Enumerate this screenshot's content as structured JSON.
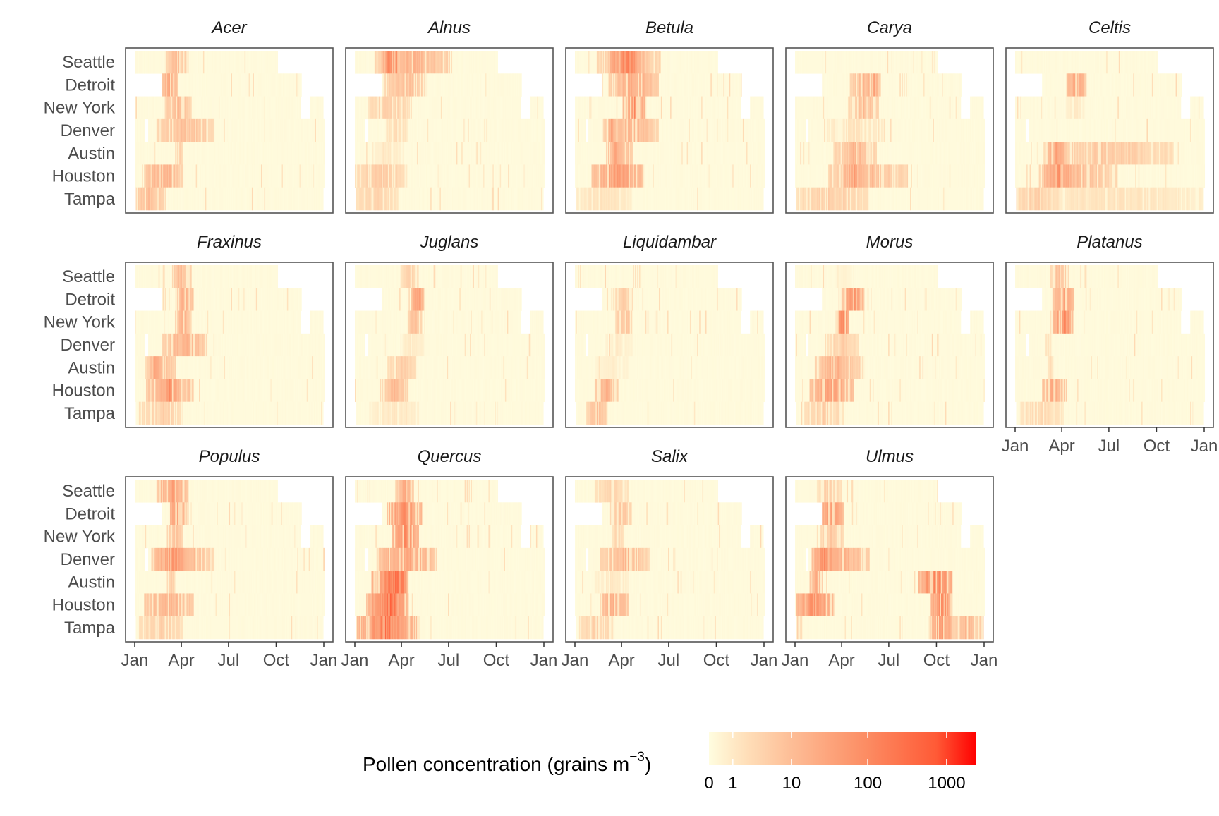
{
  "chart_data": {
    "type": "heatmap",
    "facet_by": "genus",
    "x_axis": {
      "label": "",
      "unit": "day of year",
      "range": [
        0,
        365
      ],
      "ticks": [
        {
          "label": "Jan",
          "day": 0
        },
        {
          "label": "Apr",
          "day": 90
        },
        {
          "label": "Jul",
          "day": 181
        },
        {
          "label": "Oct",
          "day": 273
        },
        {
          "label": "Jan",
          "day": 365
        }
      ]
    },
    "y_categories": [
      "Seattle",
      "Detroit",
      "New York",
      "Denver",
      "Austin",
      "Houston",
      "Tampa"
    ],
    "legend": {
      "title": "Pollen concentration (grains m",
      "title_sup": "−3",
      "title_close": ")",
      "placement": "bottom",
      "scale": "log10(x+1)",
      "max_log": 3.375,
      "breaks": [
        {
          "label": "0",
          "value": 0
        },
        {
          "label": "1",
          "value": 1
        },
        {
          "label": "10",
          "value": 10
        },
        {
          "label": "100",
          "value": 100
        },
        {
          "label": "1000",
          "value": 1000
        }
      ],
      "colors": [
        "#FFFDE0",
        "#FFE3BD",
        "#FDBB94",
        "#FC8A61",
        "#FF5A36",
        "#FF0000"
      ]
    },
    "coverage_days": {
      "Seattle": [
        [
          0,
          275
        ]
      ],
      "Detroit": [
        [
          52,
          322
        ]
      ],
      "New York": [
        [
          0,
          320
        ],
        [
          338,
          363
        ]
      ],
      "Denver": [
        [
          0,
          19
        ],
        [
          25,
          365
        ]
      ],
      "Austin": [
        [
          0,
          365
        ]
      ],
      "Houston": [
        [
          0,
          365
        ]
      ],
      "Tampa": [
        [
          2,
          364
        ]
      ]
    },
    "note": "seasons: [start_day, end_day, peak log10(concentration+1)]",
    "panels": [
      {
        "genus": "Acer",
        "seasons": {
          "Seattle": [
            [
              60,
              100,
              1.2
            ]
          ],
          "Detroit": [
            [
              52,
              80,
              1.6
            ]
          ],
          "New York": [
            [
              60,
              105,
              1.3
            ]
          ],
          "Denver": [
            [
              45,
              150,
              1.2
            ]
          ],
          "Austin": [
            [
              80,
              90,
              1.0
            ]
          ],
          "Houston": [
            [
              20,
              90,
              1.5
            ]
          ],
          "Tampa": [
            [
              0,
              55,
              1.2
            ]
          ]
        }
      },
      {
        "genus": "Alnus",
        "seasons": {
          "Seattle": [
            [
              40,
              179,
              1.4
            ],
            [
              57,
              85,
              2.6
            ]
          ],
          "Detroit": [
            [
              57,
              135,
              1.2
            ]
          ],
          "New York": [
            [
              28,
              106,
              0.9
            ]
          ],
          "Denver": [
            [
              60,
              100,
              0.6
            ]
          ],
          "Austin": [
            [
              40,
              90,
              0.4
            ]
          ],
          "Houston": [
            [
              0,
              98,
              1.0
            ]
          ],
          "Tampa": [
            [
              0,
              80,
              0.8
            ]
          ]
        }
      },
      {
        "genus": "Betula",
        "seasons": {
          "Seattle": [
            [
              45,
              162,
              1.2
            ],
            [
              70,
              129,
              2.4
            ]
          ],
          "Detroit": [
            [
              68,
              157,
              1.6
            ]
          ],
          "New York": [
            [
              95,
              134,
              2.3
            ]
          ],
          "Denver": [
            [
              57,
              157,
              1.4
            ],
            [
              68,
              72,
              2.0
            ]
          ],
          "Austin": [
            [
              62,
              107,
              1.6
            ],
            [
              73,
              82,
              2.2
            ]
          ],
          "Houston": [
            [
              35,
              129,
              1.9
            ]
          ],
          "Tampa": [
            [
              0,
              107,
              0.5
            ]
          ]
        }
      },
      {
        "genus": "Carya",
        "seasons": {
          "Seattle": [],
          "Detroit": [
            [
              107,
              161,
              1.3
            ],
            [
              139,
              161,
              1.8
            ]
          ],
          "New York": [
            [
              107,
              158,
              1.2
            ]
          ],
          "Denver": [
            [
              60,
              170,
              0.5
            ]
          ],
          "Austin": [
            [
              76,
              153,
              1.2
            ],
            [
              104,
              131,
              1.7
            ]
          ],
          "Houston": [
            [
              66,
              213,
              1.3
            ],
            [
              95,
              131,
              2.0
            ]
          ],
          "Tampa": [
            [
              5,
              137,
              0.9
            ]
          ]
        }
      },
      {
        "genus": "Celtis",
        "seasons": {
          "Seattle": [],
          "Detroit": [
            [
              100,
              133,
              1.8
            ]
          ],
          "New York": [
            [
              100,
              130,
              0.4
            ]
          ],
          "Denver": [],
          "Austin": [
            [
              57,
              302,
              1.0
            ],
            [
              62,
              95,
              1.8
            ]
          ],
          "Houston": [
            [
              46,
              193,
              1.2
            ],
            [
              55,
              110,
              2.1
            ]
          ],
          "Tampa": [
            [
              2,
              364,
              0.5
            ],
            [
              2,
              80,
              0.9
            ]
          ]
        }
      },
      {
        "genus": "Fraxinus",
        "seasons": {
          "Seattle": [
            [
              75,
              105,
              1.3
            ]
          ],
          "Detroit": [
            [
              80,
              110,
              1.6
            ]
          ],
          "New York": [
            [
              80,
              105,
              1.5
            ]
          ],
          "Denver": [
            [
              55,
              135,
              1.5
            ]
          ],
          "Austin": [
            [
              25,
              75,
              1.4
            ],
            [
              30,
              50,
              1.8
            ]
          ],
          "Houston": [
            [
              25,
              110,
              1.6
            ],
            [
              50,
              80,
              2.2
            ]
          ],
          "Tampa": [
            [
              10,
              90,
              0.9
            ]
          ]
        }
      },
      {
        "genus": "Juglans",
        "seasons": {
          "Seattle": [
            [
              90,
              120,
              0.8
            ]
          ],
          "Detroit": [
            [
              110,
              130,
              2.0
            ]
          ],
          "New York": [
            [
              105,
              125,
              1.3
            ]
          ],
          "Denver": [
            [
              90,
              130,
              0.4
            ]
          ],
          "Austin": [
            [
              65,
              115,
              0.9
            ]
          ],
          "Houston": [
            [
              50,
              100,
              1.3
            ]
          ],
          "Tampa": [
            [
              30,
              120,
              0.4
            ]
          ]
        }
      },
      {
        "genus": "Liquidambar",
        "seasons": {
          "Seattle": [],
          "Detroit": [
            [
              72,
              108,
              0.9
            ]
          ],
          "New York": [
            [
              80,
              108,
              1.2
            ]
          ],
          "Denver": [
            [
              60,
              110,
              0.3
            ]
          ],
          "Austin": [
            [
              40,
              100,
              0.3
            ]
          ],
          "Houston": [
            [
              40,
              80,
              1.5
            ]
          ],
          "Tampa": [
            [
              25,
              60,
              1.2
            ]
          ]
        }
      },
      {
        "genus": "Morus",
        "seasons": {
          "Seattle": [
            [
              80,
              110,
              0.2
            ]
          ],
          "Detroit": [
            [
              90,
              130,
              1.6
            ],
            [
              100,
              130,
              2.5
            ]
          ],
          "New York": [
            [
              80,
              100,
              2.4
            ]
          ],
          "Denver": [
            [
              60,
              120,
              0.9
            ]
          ],
          "Austin": [
            [
              40,
              130,
              1.2
            ],
            [
              50,
              100,
              1.7
            ]
          ],
          "Houston": [
            [
              30,
              110,
              1.9
            ]
          ],
          "Tampa": [
            [
              20,
              90,
              0.9
            ]
          ]
        }
      },
      {
        "genus": "Platanus",
        "seasons": {
          "Seattle": [
            [
              70,
              100,
              1.2
            ]
          ],
          "Detroit": [
            [
              75,
              110,
              1.8
            ]
          ],
          "New York": [
            [
              75,
              110,
              2.3
            ]
          ],
          "Denver": [
            [
              60,
              65,
              0.6
            ]
          ],
          "Austin": [
            [
              65,
              70,
              0.6
            ]
          ],
          "Houston": [
            [
              55,
              95,
              1.8
            ]
          ],
          "Tampa": [
            [
              10,
              90,
              0.7
            ]
          ]
        }
      },
      {
        "genus": "Populus",
        "seasons": {
          "Seattle": [
            [
              45,
              100,
              1.8
            ]
          ],
          "Detroit": [
            [
              70,
              100,
              2.2
            ]
          ],
          "New York": [
            [
              65,
              90,
              1.3
            ]
          ],
          "Denver": [
            [
              35,
              150,
              1.4
            ],
            [
              40,
              110,
              2.0
            ]
          ],
          "Austin": [
            [
              65,
              75,
              1.0
            ]
          ],
          "Houston": [
            [
              20,
              110,
              1.5
            ]
          ],
          "Tampa": [
            [
              10,
              90,
              0.9
            ]
          ]
        }
      },
      {
        "genus": "Quercus",
        "seasons": {
          "Seattle": [
            [
              80,
              110,
              1.6
            ]
          ],
          "Detroit": [
            [
              65,
              125,
              2.3
            ]
          ],
          "New York": [
            [
              75,
              120,
              2.4
            ]
          ],
          "Denver": [
            [
              45,
              150,
              1.8
            ]
          ],
          "Austin": [
            [
              35,
              100,
              2.4
            ],
            [
              70,
              95,
              3.3
            ]
          ],
          "Houston": [
            [
              25,
              100,
              2.4
            ],
            [
              45,
              90,
              3.0
            ]
          ],
          "Tampa": [
            [
              0,
              120,
              2.0
            ],
            [
              30,
              90,
              2.9
            ]
          ]
        }
      },
      {
        "genus": "Salix",
        "seasons": {
          "Seattle": [
            [
              40,
              100,
              0.8
            ]
          ],
          "Detroit": [
            [
              75,
              105,
              1.2
            ]
          ],
          "New York": [
            [
              75,
              90,
              0.9
            ]
          ],
          "Denver": [
            [
              50,
              140,
              1.3
            ]
          ],
          "Austin": [
            [
              40,
              100,
              0.4
            ]
          ],
          "Houston": [
            [
              50,
              100,
              1.6
            ]
          ],
          "Tampa": [
            [
              10,
              70,
              0.9
            ]
          ]
        }
      },
      {
        "genus": "Ulmus",
        "seasons": {
          "Seattle": [
            [
              45,
              85,
              0.9
            ]
          ],
          "Detroit": [
            [
              45,
              90,
              2.0
            ]
          ],
          "New York": [
            [
              50,
              90,
              1.0
            ]
          ],
          "Denver": [
            [
              35,
              140,
              1.5
            ],
            [
              35,
              80,
              2.3
            ]
          ],
          "Austin": [
            [
              30,
              50,
              1.5
            ],
            [
              240,
              300,
              2.5
            ]
          ],
          "Houston": [
            [
              5,
              70,
              2.2
            ],
            [
              265,
              300,
              2.3
            ]
          ],
          "Tampa": [
            [
              0,
              10,
              1.0
            ],
            [
              260,
              300,
              2.1
            ],
            [
              300,
              360,
              1.3
            ]
          ]
        }
      }
    ]
  }
}
